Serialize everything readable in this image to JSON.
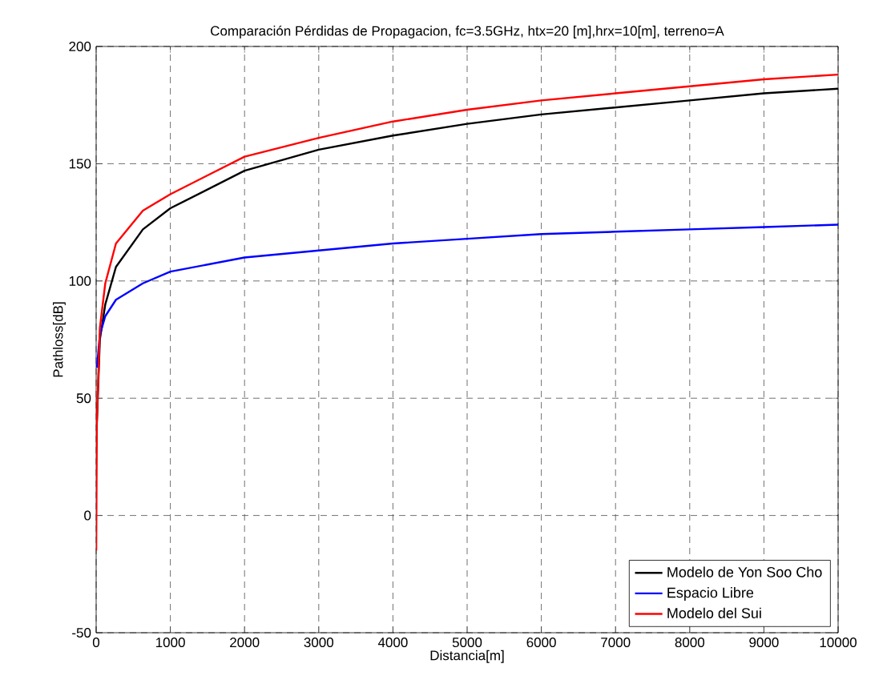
{
  "chart_data": {
    "type": "line",
    "title": "Comparación Pérdidas de Propagacion, fc=3.5GHz, htx=20 [m],hrx=10[m], terreno=A",
    "xlabel": "Distancia[m]",
    "ylabel": "Pathloss[dB]",
    "xlim": [
      0,
      10000
    ],
    "ylim": [
      -50,
      200
    ],
    "xticks": [
      0,
      1000,
      2000,
      3000,
      4000,
      5000,
      6000,
      7000,
      8000,
      9000,
      10000
    ],
    "yticks": [
      -50,
      0,
      50,
      100,
      150,
      200
    ],
    "grid": true,
    "legend": "bottom right",
    "line_style": "solid",
    "marker": "none",
    "series": [
      {
        "name": "Modelo de Yon Soo Cho",
        "color": "#000000",
        "x": [
          10,
          50,
          123,
          267,
          630,
          1000,
          2000,
          3000,
          4000,
          5000,
          6000,
          7000,
          8000,
          9000,
          10000
        ],
        "values": [
          40,
          75,
          90,
          106,
          122,
          131,
          147,
          156,
          162,
          167,
          171,
          174,
          177,
          180,
          182
        ]
      },
      {
        "name": "Espacio Libre",
        "color": "#0000ff",
        "x": [
          10,
          50,
          123,
          267,
          630,
          1000,
          2000,
          3000,
          4000,
          5000,
          6000,
          7000,
          8000,
          9000,
          10000
        ],
        "values": [
          63,
          77,
          85,
          92,
          99,
          104,
          110,
          113,
          116,
          118,
          120,
          121,
          122,
          123,
          124
        ]
      },
      {
        "name": "Modelo del Sui",
        "color": "#ff0000",
        "x": [
          1,
          10,
          50,
          123,
          267,
          630,
          1000,
          2000,
          3000,
          4000,
          5000,
          6000,
          7000,
          8000,
          9000,
          10000
        ],
        "values": [
          -15,
          40,
          80,
          99,
          116,
          130,
          137,
          153,
          161,
          168,
          173,
          177,
          180,
          183,
          186,
          188
        ]
      }
    ]
  }
}
